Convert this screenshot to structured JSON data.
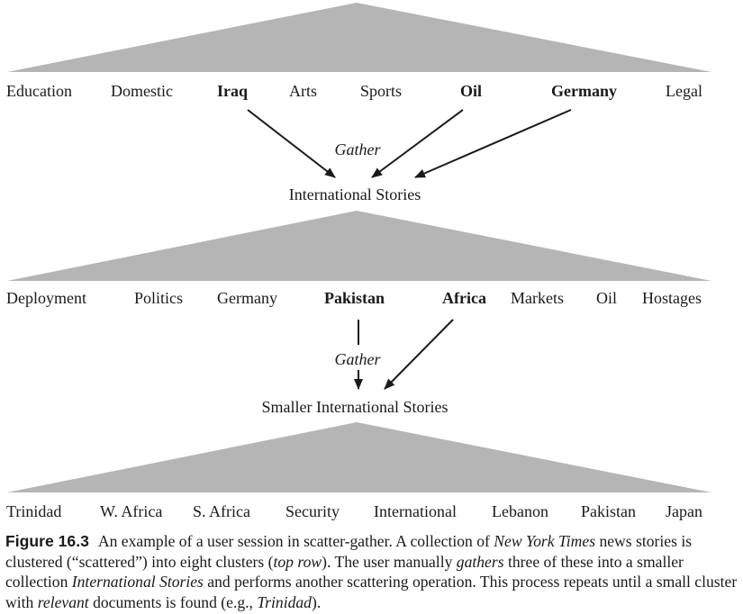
{
  "levels": [
    {
      "clusters": [
        {
          "label": "Education",
          "bold": false
        },
        {
          "label": "Domestic",
          "bold": false
        },
        {
          "label": "Iraq",
          "bold": true
        },
        {
          "label": "Arts",
          "bold": false
        },
        {
          "label": "Sports",
          "bold": false
        },
        {
          "label": "Oil",
          "bold": true
        },
        {
          "label": "Germany",
          "bold": true
        },
        {
          "label": "Legal",
          "bold": false
        }
      ],
      "gather_label": "Gather",
      "result_label": "International Stories"
    },
    {
      "clusters": [
        {
          "label": "Deployment",
          "bold": false
        },
        {
          "label": "Politics",
          "bold": false
        },
        {
          "label": "Germany",
          "bold": false
        },
        {
          "label": "Pakistan",
          "bold": true
        },
        {
          "label": "Africa",
          "bold": true
        },
        {
          "label": "Markets",
          "bold": false
        },
        {
          "label": "Oil",
          "bold": false
        },
        {
          "label": "Hostages",
          "bold": false
        }
      ],
      "gather_label": "Gather",
      "result_label": "Smaller International Stories"
    },
    {
      "clusters": [
        {
          "label": "Trinidad",
          "bold": false
        },
        {
          "label": "W. Africa",
          "bold": false
        },
        {
          "label": "S. Africa",
          "bold": false
        },
        {
          "label": "Security",
          "bold": false
        },
        {
          "label": "International",
          "bold": false
        },
        {
          "label": "Lebanon",
          "bold": false
        },
        {
          "label": "Pakistan",
          "bold": false
        },
        {
          "label": "Japan",
          "bold": false
        }
      ]
    }
  ],
  "caption": {
    "figure_label": "Figure 16.3",
    "parts": [
      {
        "text": "An example of a user session in scatter-gather. A collection of ",
        "italic": false
      },
      {
        "text": "New York Times",
        "italic": true
      },
      {
        "text": " news stories is clustered (“scattered”) into eight clusters (",
        "italic": false
      },
      {
        "text": "top row",
        "italic": true
      },
      {
        "text": "). The user manually ",
        "italic": false
      },
      {
        "text": "gathers",
        "italic": true
      },
      {
        "text": " three of these into a smaller collection ",
        "italic": false
      },
      {
        "text": "International Stories",
        "italic": true
      },
      {
        "text": " and performs another scattering operation. This process repeats until a small cluster with ",
        "italic": false
      },
      {
        "text": "relevant",
        "italic": true
      },
      {
        "text": " documents is found (e.g., ",
        "italic": false
      },
      {
        "text": "Trinidad",
        "italic": true
      },
      {
        "text": ").",
        "italic": false
      }
    ]
  },
  "colors": {
    "triangle": "#b5b5b5",
    "text": "#1a1a1a",
    "arrow": "#1a1a1a"
  }
}
